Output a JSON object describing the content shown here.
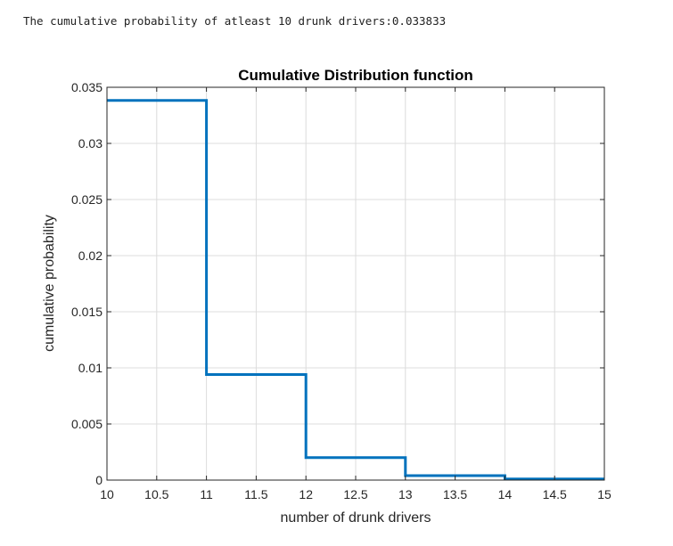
{
  "console": {
    "output_line": "The cumulative probability of atleast 10 drunk drivers:0.033833"
  },
  "chart_data": {
    "type": "line",
    "style": "stairs",
    "title": "Cumulative Distribution function",
    "xlabel": "number of drunk drivers",
    "ylabel": "cumulative probability",
    "xlim": [
      10,
      15
    ],
    "ylim": [
      0,
      0.035
    ],
    "grid": true,
    "x_ticks": [
      10,
      10.5,
      11,
      11.5,
      12,
      12.5,
      13,
      13.5,
      14,
      14.5,
      15
    ],
    "x_tick_labels": [
      "10",
      "10.5",
      "11",
      "11.5",
      "12",
      "12.5",
      "13",
      "13.5",
      "14",
      "14.5",
      "15"
    ],
    "y_ticks": [
      0,
      0.005,
      0.01,
      0.015,
      0.02,
      0.025,
      0.03,
      0.035
    ],
    "y_tick_labels": [
      "0",
      "0.005",
      "0.01",
      "0.015",
      "0.02",
      "0.025",
      "0.03",
      "0.035"
    ],
    "series": [
      {
        "color": "#0072BD",
        "x": [
          10,
          11,
          12,
          13,
          14
        ],
        "values": [
          0.033833,
          0.0094,
          0.002,
          0.0004,
          0.0001
        ]
      }
    ]
  }
}
